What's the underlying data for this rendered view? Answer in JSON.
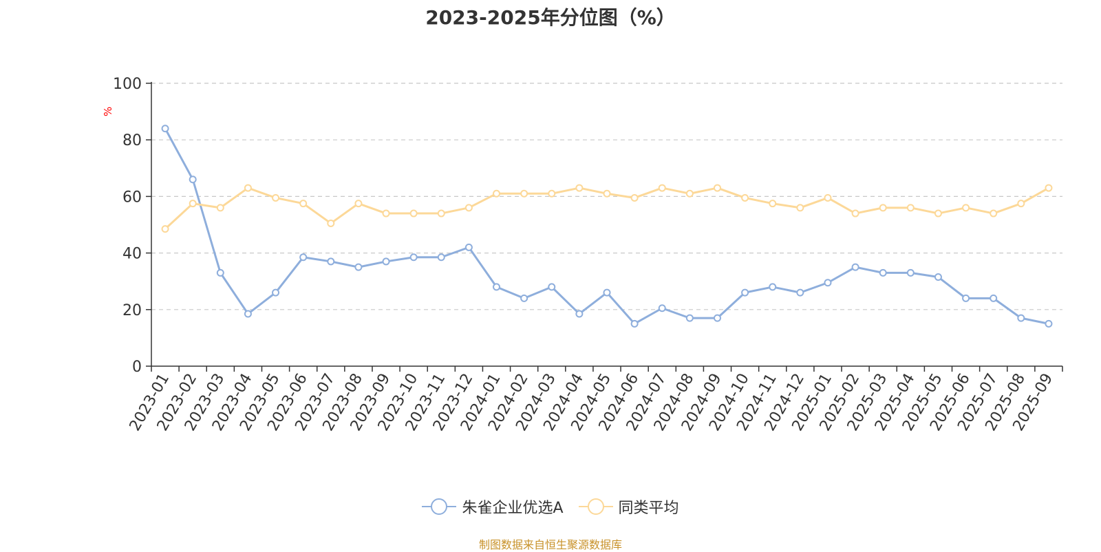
{
  "title": "2023-2025年分位图（%）",
  "footer": "制图数据来自恒生聚源数据库",
  "colors": {
    "series1": "#8eaedc",
    "series2": "#fcd898",
    "grid": "#c8c8c8",
    "unit": "#ff0000"
  },
  "chart_data": {
    "type": "line",
    "ylabel": "%",
    "ylim": [
      0,
      100
    ],
    "yticks": [
      "0",
      "20",
      "40",
      "60",
      "80",
      "100"
    ],
    "grid": true,
    "legend_position": "bottom",
    "categories": [
      "2023-01",
      "2023-02",
      "2023-03",
      "2023-04",
      "2023-05",
      "2023-06",
      "2023-07",
      "2023-08",
      "2023-09",
      "2023-10",
      "2023-11",
      "2023-12",
      "2024-01",
      "2024-02",
      "2024-03",
      "2024-04",
      "2024-05",
      "2024-06",
      "2024-07",
      "2024-08",
      "2024-09",
      "2024-10",
      "2024-11",
      "2024-12",
      "2025-01",
      "2025-02",
      "2025-03",
      "2025-04",
      "2025-05",
      "2025-06",
      "2025-07",
      "2025-08",
      "2025-09"
    ],
    "series": [
      {
        "name": "朱雀企业优选A",
        "values": [
          84,
          66,
          33,
          18.5,
          26,
          38.5,
          37,
          35,
          37,
          38.5,
          38.5,
          42,
          28,
          24,
          28,
          18.5,
          26,
          15,
          20.5,
          17,
          17,
          26,
          28,
          26,
          29.5,
          35,
          33,
          33,
          31.5,
          24,
          24,
          17,
          15
        ]
      },
      {
        "name": "同类平均",
        "values": [
          48.5,
          57.5,
          56,
          63,
          59.5,
          57.5,
          50.5,
          57.5,
          54,
          54,
          54,
          56,
          61,
          61,
          61,
          63,
          61,
          59.5,
          63,
          61,
          63,
          59.5,
          57.5,
          56,
          59.5,
          54,
          56,
          56,
          54,
          56,
          54,
          57.5,
          63
        ]
      }
    ]
  }
}
